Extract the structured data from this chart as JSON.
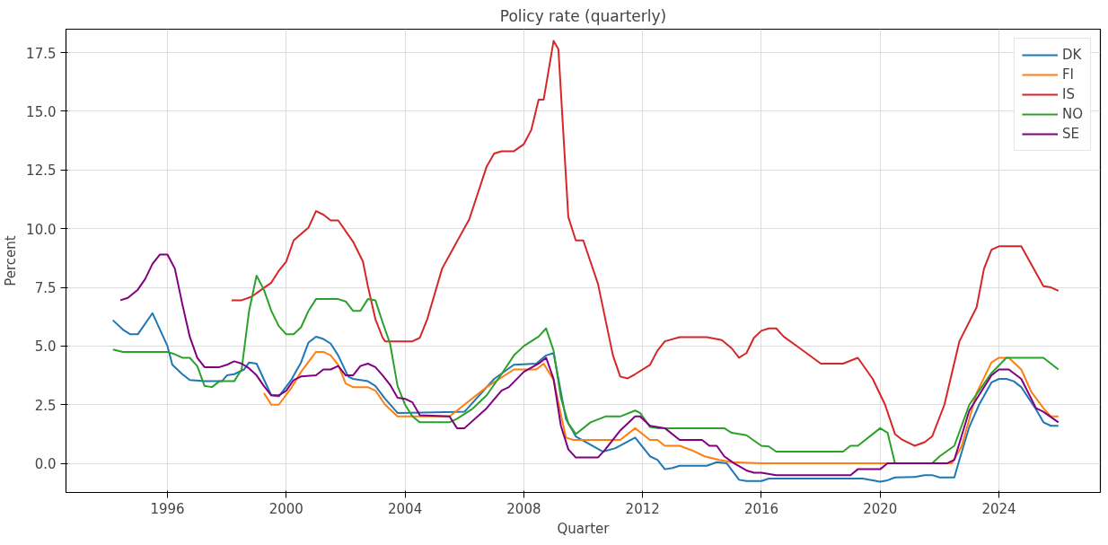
{
  "chart_data": {
    "type": "line",
    "title": "Policy rate (quarterly)",
    "xlabel": "Quarter",
    "ylabel": "Percent",
    "xlim": [
      "1992-08",
      "2027-06"
    ],
    "ylim": [
      -1.24,
      18.5
    ],
    "xticks": [
      {
        "value": "1996",
        "label": "1996"
      },
      {
        "value": "2000",
        "label": "2000"
      },
      {
        "value": "2004",
        "label": "2004"
      },
      {
        "value": "2008",
        "label": "2008"
      },
      {
        "value": "2012",
        "label": "2012"
      },
      {
        "value": "2016",
        "label": "2016"
      },
      {
        "value": "2020",
        "label": "2020"
      },
      {
        "value": "2024",
        "label": "2024"
      }
    ],
    "yticks": [
      {
        "value": 0,
        "label": "0.0"
      },
      2.5,
      {
        "value": 5,
        "label": "5.0"
      },
      7.5,
      {
        "value": 10,
        "label": "10.0"
      },
      12.5,
      {
        "value": 15,
        "label": "15.0"
      },
      17.5
    ],
    "grid": true,
    "legend": "top right",
    "marker": "none",
    "line_style": "solid",
    "series": [
      {
        "name": "DK",
        "color": "#1f77b4",
        "x": [
          "1994-03",
          "1994-07",
          "1994-10",
          "1995-01",
          "1995-07",
          "1996-01",
          "1996-03",
          "1996-07",
          "1996-10",
          "1997-04",
          "1997-11",
          "1998-01",
          "1998-04",
          "1998-08",
          "1998-10",
          "1999-01",
          "1999-07",
          "1999-10",
          "2000-03",
          "2000-07",
          "2000-10",
          "2001-01",
          "2001-04",
          "2001-07",
          "2001-10",
          "2002-02",
          "2002-04",
          "2002-10",
          "2003-01",
          "2003-05",
          "2003-10",
          "2006-01",
          "2007-01",
          "2007-09",
          "2008-06",
          "2008-10",
          "2009-01",
          "2009-06",
          "2009-10",
          "2010-09",
          "2011-02",
          "2011-10",
          "2012-04",
          "2012-07",
          "2012-10",
          "2013-01",
          "2013-04",
          "2014-03",
          "2014-07",
          "2014-11",
          "2015-04",
          "2015-07",
          "2016-01",
          "2016-04",
          "2019-06",
          "2020-01",
          "2020-04",
          "2020-07",
          "2021-03",
          "2021-07",
          "2021-10",
          "2022-01",
          "2022-07",
          "2022-09",
          "2023-01",
          "2023-05",
          "2023-10",
          "2024-01",
          "2024-04",
          "2024-07",
          "2024-10",
          "2025-04",
          "2025-07",
          "2025-10",
          "2026-01"
        ],
        "values": [
          6.1,
          5.7,
          5.5,
          5.5,
          6.4,
          5.0,
          4.2,
          3.8,
          3.55,
          3.5,
          3.5,
          3.75,
          3.8,
          4.0,
          4.3,
          4.25,
          2.9,
          2.85,
          3.55,
          4.3,
          5.15,
          5.4,
          5.3,
          5.1,
          4.6,
          3.7,
          3.6,
          3.5,
          3.3,
          2.75,
          2.15,
          2.2,
          3.6,
          4.2,
          4.25,
          4.6,
          4.7,
          1.9,
          1.15,
          0.5,
          0.65,
          1.1,
          0.3,
          0.15,
          -0.25,
          -0.2,
          -0.1,
          -0.1,
          0.05,
          0.0,
          -0.7,
          -0.75,
          -0.75,
          -0.65,
          -0.65,
          -0.78,
          -0.72,
          -0.6,
          -0.58,
          -0.5,
          -0.5,
          -0.6,
          -0.6,
          0.15,
          1.55,
          2.5,
          3.45,
          3.6,
          3.6,
          3.5,
          3.25,
          2.3,
          1.75,
          1.6,
          1.6
        ]
      },
      {
        "name": "FI",
        "color": "#ff7f0e",
        "x": [
          "1999-04",
          "1999-07",
          "1999-10",
          "2000-03",
          "2000-07",
          "2001-01",
          "2001-04",
          "2001-07",
          "2001-10",
          "2002-01",
          "2002-04",
          "2002-10",
          "2003-01",
          "2003-05",
          "2003-10",
          "2005-07",
          "2006-10",
          "2007-09",
          "2008-06",
          "2008-09",
          "2009-01",
          "2009-06",
          "2009-09",
          "2011-04",
          "2011-10",
          "2012-04",
          "2012-07",
          "2012-10",
          "2013-04",
          "2013-09",
          "2014-02",
          "2014-08",
          "2015-01",
          "2016-01",
          "2022-06",
          "2022-10",
          "2023-04",
          "2023-10",
          "2024-01",
          "2024-05",
          "2024-10",
          "2025-02",
          "2025-07",
          "2025-10",
          "2026-01"
        ],
        "values": [
          3.0,
          2.5,
          2.5,
          3.2,
          3.9,
          4.75,
          4.75,
          4.6,
          4.2,
          3.4,
          3.25,
          3.25,
          3.1,
          2.5,
          2.0,
          2.0,
          3.25,
          4.0,
          4.0,
          4.25,
          3.55,
          1.1,
          1.0,
          1.0,
          1.5,
          1.0,
          1.0,
          0.75,
          0.75,
          0.55,
          0.3,
          0.15,
          0.05,
          0.0,
          0.0,
          0.75,
          3.0,
          4.3,
          4.5,
          4.5,
          4.0,
          3.05,
          2.35,
          2.0,
          2.0
        ]
      },
      {
        "name": "IS",
        "color": "#d62728",
        "x": [
          "1998-03",
          "1998-07",
          "1998-11",
          "1999-03",
          "1999-07",
          "1999-10",
          "2000-01",
          "2000-04",
          "2000-10",
          "2001-01",
          "2001-04",
          "2001-07",
          "2001-10",
          "2002-04",
          "2002-08",
          "2002-10",
          "2003-01",
          "2003-04",
          "2003-05",
          "2004-04",
          "2004-07",
          "2004-10",
          "2005-04",
          "2006-03",
          "2006-10",
          "2007-01",
          "2007-04",
          "2007-09",
          "2008-01",
          "2008-04",
          "2008-07",
          "2008-09",
          "2009-01",
          "2009-03",
          "2009-07",
          "2009-10",
          "2010-01",
          "2010-07",
          "2011-01",
          "2011-04",
          "2011-07",
          "2011-10",
          "2012-04",
          "2012-07",
          "2012-10",
          "2013-04",
          "2014-03",
          "2014-09",
          "2015-01",
          "2015-04",
          "2015-07",
          "2015-10",
          "2016-01",
          "2016-04",
          "2016-07",
          "2016-10",
          "2017-04",
          "2018-01",
          "2018-10",
          "2019-04",
          "2019-10",
          "2020-03",
          "2020-07",
          "2020-10",
          "2021-03",
          "2021-07",
          "2021-10",
          "2022-03",
          "2022-09",
          "2023-04",
          "2023-07",
          "2023-10",
          "2024-01",
          "2024-10",
          "2025-07",
          "2025-10",
          "2026-01"
        ],
        "values": [
          6.95,
          6.95,
          7.1,
          7.4,
          7.7,
          8.2,
          8.6,
          9.5,
          10.05,
          10.75,
          10.6,
          10.35,
          10.35,
          9.45,
          8.6,
          7.55,
          6.15,
          5.35,
          5.2,
          5.2,
          5.35,
          6.15,
          8.3,
          10.4,
          12.65,
          13.2,
          13.3,
          13.3,
          13.6,
          14.2,
          15.5,
          15.5,
          18.0,
          17.65,
          10.5,
          9.5,
          9.5,
          7.65,
          4.6,
          3.7,
          3.62,
          3.8,
          4.2,
          4.8,
          5.2,
          5.38,
          5.38,
          5.25,
          4.9,
          4.5,
          4.7,
          5.35,
          5.65,
          5.75,
          5.75,
          5.4,
          4.95,
          4.25,
          4.25,
          4.5,
          3.6,
          2.5,
          1.25,
          1.0,
          0.75,
          0.9,
          1.15,
          2.5,
          5.2,
          6.65,
          8.3,
          9.1,
          9.25,
          9.25,
          7.55,
          7.5,
          7.35
        ]
      },
      {
        "name": "NO",
        "color": "#2ca02c",
        "x": [
          "1994-03",
          "1994-07",
          "1996-01",
          "1996-04",
          "1996-07",
          "1996-10",
          "1997-01",
          "1997-04",
          "1997-07",
          "1997-10",
          "1998-04",
          "1998-07",
          "1998-10",
          "1999-01",
          "1999-04",
          "1999-07",
          "1999-10",
          "2000-01",
          "2000-04",
          "2000-07",
          "2000-10",
          "2001-01",
          "2001-10",
          "2002-01",
          "2002-04",
          "2002-07",
          "2002-10",
          "2003-01",
          "2003-04",
          "2003-07",
          "2003-10",
          "2004-01",
          "2004-04",
          "2004-07",
          "2005-07",
          "2005-10",
          "2006-04",
          "2006-10",
          "2007-04",
          "2007-09",
          "2008-01",
          "2008-07",
          "2008-10",
          "2009-01",
          "2009-04",
          "2009-07",
          "2009-10",
          "2010-04",
          "2010-10",
          "2011-04",
          "2011-10",
          "2011-12",
          "2012-04",
          "2012-07",
          "2014-10",
          "2015-01",
          "2015-07",
          "2016-01",
          "2016-04",
          "2016-07",
          "2018-10",
          "2019-01",
          "2019-04",
          "2020-01",
          "2020-04",
          "2020-07",
          "2021-10",
          "2022-01",
          "2022-07",
          "2023-01",
          "2023-10",
          "2024-04",
          "2025-07",
          "2026-01"
        ],
        "values": [
          4.85,
          4.75,
          4.75,
          4.65,
          4.5,
          4.5,
          4.15,
          3.3,
          3.25,
          3.5,
          3.5,
          4.0,
          6.5,
          8.0,
          7.4,
          6.5,
          5.85,
          5.5,
          5.5,
          5.8,
          6.5,
          7.0,
          7.0,
          6.9,
          6.5,
          6.5,
          7.0,
          6.95,
          6.0,
          5.1,
          3.3,
          2.5,
          2.0,
          1.75,
          1.75,
          1.9,
          2.3,
          2.9,
          3.8,
          4.6,
          5.0,
          5.4,
          5.75,
          4.8,
          2.8,
          1.7,
          1.25,
          1.75,
          2.0,
          2.0,
          2.25,
          2.15,
          1.55,
          1.5,
          1.5,
          1.3,
          1.2,
          0.75,
          0.72,
          0.5,
          0.5,
          0.75,
          0.75,
          1.5,
          1.3,
          0.0,
          0.0,
          0.3,
          0.75,
          2.5,
          3.85,
          4.5,
          4.5,
          4.0
        ]
      },
      {
        "name": "SE",
        "color": "#800080",
        "x": [
          "1994-06",
          "1994-09",
          "1995-01",
          "1995-04",
          "1995-07",
          "1995-10",
          "1996-01",
          "1996-04",
          "1996-07",
          "1996-10",
          "1997-01",
          "1997-04",
          "1997-10",
          "1998-01",
          "1998-04",
          "1998-07",
          "1998-10",
          "1999-01",
          "1999-04",
          "1999-07",
          "1999-10",
          "2000-01",
          "2000-04",
          "2000-07",
          "2001-01",
          "2001-04",
          "2001-07",
          "2001-10",
          "2002-01",
          "2002-04",
          "2002-07",
          "2002-10",
          "2003-01",
          "2003-04",
          "2003-07",
          "2003-10",
          "2004-01",
          "2004-04",
          "2004-07",
          "2005-07",
          "2005-10",
          "2006-01",
          "2006-10",
          "2007-04",
          "2007-07",
          "2008-01",
          "2008-07",
          "2008-10",
          "2009-01",
          "2009-04",
          "2009-07",
          "2009-10",
          "2010-07",
          "2010-10",
          "2011-04",
          "2011-10",
          "2011-12",
          "2012-04",
          "2012-10",
          "2013-04",
          "2014-01",
          "2014-04",
          "2014-07",
          "2014-10",
          "2015-02",
          "2015-07",
          "2015-10",
          "2016-01",
          "2016-07",
          "2019-01",
          "2019-04",
          "2020-01",
          "2020-04",
          "2022-04",
          "2022-07",
          "2023-01",
          "2023-10",
          "2024-01",
          "2024-05",
          "2024-10",
          "2025-04",
          "2025-07",
          "2026-01"
        ],
        "values": [
          6.95,
          7.05,
          7.4,
          7.85,
          8.5,
          8.9,
          8.9,
          8.3,
          6.8,
          5.4,
          4.5,
          4.1,
          4.1,
          4.2,
          4.35,
          4.25,
          4.05,
          3.75,
          3.3,
          2.9,
          2.9,
          3.1,
          3.55,
          3.7,
          3.75,
          4.0,
          4.0,
          4.15,
          3.75,
          3.75,
          4.15,
          4.25,
          4.1,
          3.75,
          3.35,
          2.8,
          2.75,
          2.6,
          2.05,
          2.0,
          1.5,
          1.5,
          2.35,
          3.1,
          3.25,
          3.9,
          4.25,
          4.5,
          3.6,
          1.6,
          0.6,
          0.25,
          0.25,
          0.6,
          1.4,
          2.0,
          2.0,
          1.6,
          1.5,
          1.0,
          1.0,
          0.75,
          0.75,
          0.3,
          0.0,
          -0.3,
          -0.4,
          -0.4,
          -0.5,
          -0.5,
          -0.25,
          -0.25,
          0.0,
          0.0,
          0.15,
          2.25,
          3.75,
          4.0,
          4.0,
          3.6,
          2.35,
          2.2,
          1.75
        ]
      }
    ]
  }
}
